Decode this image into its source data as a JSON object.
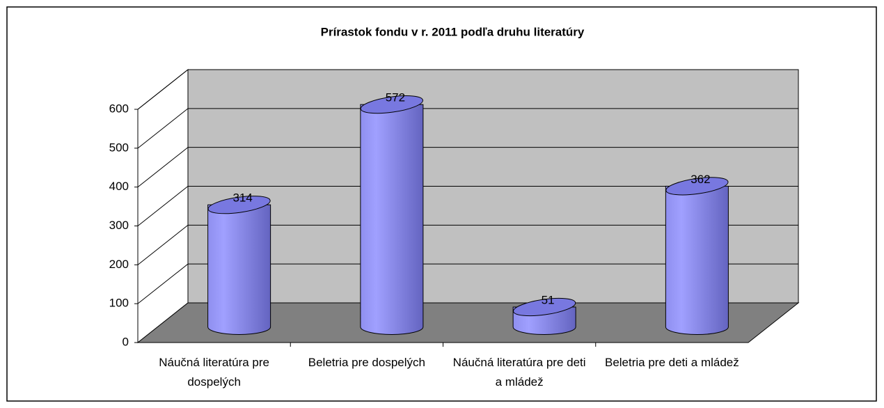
{
  "chart_data": {
    "type": "bar3d",
    "title": "Prírastok fondu v r. 2011 podľa druhu literatúry",
    "categories": [
      "Náučná literatúra pre dospelých",
      "Beletria pre dospelých",
      "Náučná literatúra pre deti a mládež",
      "Beletria pre deti a mládež"
    ],
    "values": [
      314,
      572,
      51,
      362
    ],
    "color": "#9999ff",
    "ylim": [
      0,
      600
    ],
    "yticks": [
      0,
      100,
      200,
      300,
      400,
      500,
      600
    ],
    "grid": true
  }
}
